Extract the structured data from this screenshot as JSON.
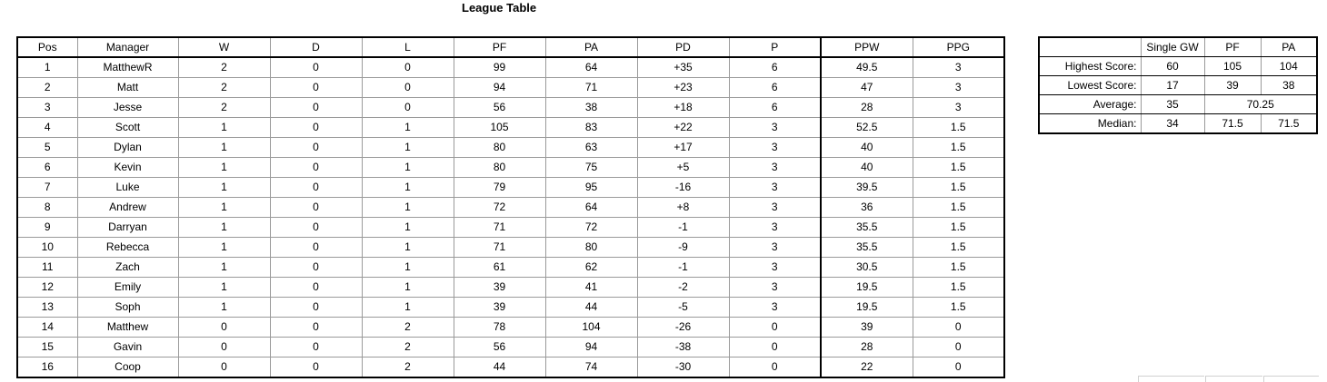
{
  "title": "League Table",
  "league": {
    "columns": [
      "Pos",
      "Manager",
      "W",
      "D",
      "L",
      "PF",
      "PA",
      "PD",
      "P",
      "PPW",
      "PPG"
    ],
    "rows": [
      [
        "1",
        "MatthewR",
        "2",
        "0",
        "0",
        "99",
        "64",
        "+35",
        "6",
        "49.5",
        "3"
      ],
      [
        "2",
        "Matt",
        "2",
        "0",
        "0",
        "94",
        "71",
        "+23",
        "6",
        "47",
        "3"
      ],
      [
        "3",
        "Jesse",
        "2",
        "0",
        "0",
        "56",
        "38",
        "+18",
        "6",
        "28",
        "3"
      ],
      [
        "4",
        "Scott",
        "1",
        "0",
        "1",
        "105",
        "83",
        "+22",
        "3",
        "52.5",
        "1.5"
      ],
      [
        "5",
        "Dylan",
        "1",
        "0",
        "1",
        "80",
        "63",
        "+17",
        "3",
        "40",
        "1.5"
      ],
      [
        "6",
        "Kevin",
        "1",
        "0",
        "1",
        "80",
        "75",
        "+5",
        "3",
        "40",
        "1.5"
      ],
      [
        "7",
        "Luke",
        "1",
        "0",
        "1",
        "79",
        "95",
        "-16",
        "3",
        "39.5",
        "1.5"
      ],
      [
        "8",
        "Andrew",
        "1",
        "0",
        "1",
        "72",
        "64",
        "+8",
        "3",
        "36",
        "1.5"
      ],
      [
        "9",
        "Darryan",
        "1",
        "0",
        "1",
        "71",
        "72",
        "-1",
        "3",
        "35.5",
        "1.5"
      ],
      [
        "10",
        "Rebecca",
        "1",
        "0",
        "1",
        "71",
        "80",
        "-9",
        "3",
        "35.5",
        "1.5"
      ],
      [
        "11",
        "Zach",
        "1",
        "0",
        "1",
        "61",
        "62",
        "-1",
        "3",
        "30.5",
        "1.5"
      ],
      [
        "12",
        "Emily",
        "1",
        "0",
        "1",
        "39",
        "41",
        "-2",
        "3",
        "19.5",
        "1.5"
      ],
      [
        "13",
        "Soph",
        "1",
        "0",
        "1",
        "39",
        "44",
        "-5",
        "3",
        "19.5",
        "1.5"
      ],
      [
        "14",
        "Matthew",
        "0",
        "0",
        "2",
        "78",
        "104",
        "-26",
        "0",
        "39",
        "0"
      ],
      [
        "15",
        "Gavin",
        "0",
        "0",
        "2",
        "56",
        "94",
        "-38",
        "0",
        "28",
        "0"
      ],
      [
        "16",
        "Coop",
        "0",
        "0",
        "2",
        "44",
        "74",
        "-30",
        "0",
        "22",
        "0"
      ]
    ]
  },
  "stats": {
    "columns": [
      "",
      "Single GW",
      "PF",
      "PA"
    ],
    "highest": {
      "label": "Highest Score:",
      "gw": "60",
      "pf": "105",
      "pa": "104"
    },
    "lowest": {
      "label": "Lowest Score:",
      "gw": "17",
      "pf": "39",
      "pa": "38"
    },
    "average": {
      "label": "Average:",
      "gw": "35",
      "pf_pa": "70.25"
    },
    "median": {
      "label": "Median:",
      "gw": "34",
      "pf": "71.5",
      "pa": "71.5"
    }
  }
}
